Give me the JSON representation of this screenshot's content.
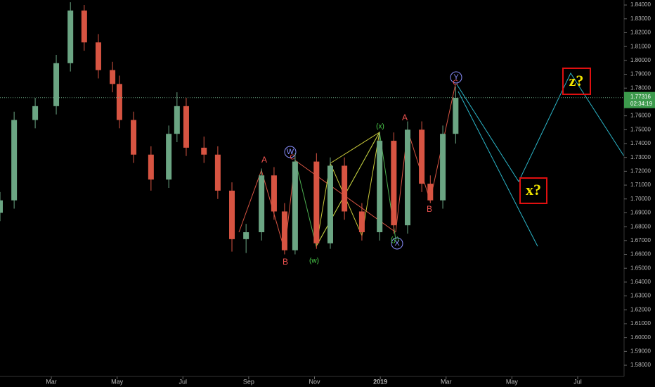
{
  "chart_data": {
    "type": "candlestick",
    "up_color": "#6ba583",
    "down_color": "#d75442",
    "x": [
      0.44,
      0.87,
      1.51,
      2.15,
      2.58,
      3.0,
      3.43,
      3.86,
      4.07,
      4.5,
      5.03,
      5.57,
      5.82,
      6.1,
      6.64,
      7.06,
      7.49,
      7.92,
      8.39,
      8.77,
      9.09,
      9.41,
      10.06,
      10.48,
      10.91,
      11.44,
      11.98,
      12.41,
      12.83,
      13.26,
      13.52,
      13.9,
      14.29
    ],
    "open": [
      1.69,
      1.699,
      1.757,
      1.767,
      1.798,
      1.836,
      1.813,
      1.793,
      1.783,
      1.757,
      1.732,
      1.714,
      1.747,
      1.767,
      1.737,
      1.732,
      1.706,
      1.671,
      1.676,
      1.717,
      1.691,
      1.663,
      1.727,
      1.668,
      1.724,
      1.691,
      1.676,
      1.742,
      1.681,
      1.75,
      1.711,
      1.699,
      1.747
    ],
    "high": [
      1.705,
      1.763,
      1.773,
      1.804,
      1.842,
      1.84,
      1.819,
      1.799,
      1.789,
      1.763,
      1.738,
      1.753,
      1.777,
      1.773,
      1.745,
      1.738,
      1.712,
      1.682,
      1.722,
      1.723,
      1.697,
      1.733,
      1.733,
      1.73,
      1.73,
      1.697,
      1.748,
      1.748,
      1.756,
      1.756,
      1.717,
      1.753,
      1.781
    ],
    "low": [
      1.684,
      1.693,
      1.751,
      1.761,
      1.792,
      1.807,
      1.787,
      1.777,
      1.751,
      1.726,
      1.706,
      1.708,
      1.741,
      1.731,
      1.726,
      1.7,
      1.662,
      1.661,
      1.67,
      1.685,
      1.66,
      1.66,
      1.664,
      1.664,
      1.685,
      1.67,
      1.67,
      1.675,
      1.675,
      1.705,
      1.697,
      1.693,
      1.74
    ],
    "close": [
      1.699,
      1.757,
      1.767,
      1.798,
      1.836,
      1.813,
      1.793,
      1.783,
      1.757,
      1.732,
      1.714,
      1.747,
      1.767,
      1.737,
      1.732,
      1.706,
      1.671,
      1.676,
      1.717,
      1.691,
      1.663,
      1.727,
      1.668,
      1.724,
      1.691,
      1.676,
      1.742,
      1.681,
      1.75,
      1.711,
      1.699,
      1.747,
      1.773
    ],
    "xlim": [
      0.44,
      19.41
    ],
    "xticks": [
      {
        "value": 2,
        "label": "Mar"
      },
      {
        "value": 4,
        "label": "May"
      },
      {
        "value": 6,
        "label": "Jul"
      },
      {
        "value": 8,
        "label": "Sep"
      },
      {
        "value": 10,
        "label": "Nov"
      },
      {
        "value": 12,
        "label": "2019"
      },
      {
        "value": 14,
        "label": "Mar"
      },
      {
        "value": 16,
        "label": "May"
      },
      {
        "value": 18,
        "label": "Jul"
      }
    ],
    "ylim": [
      1.5719,
      1.8436
    ],
    "yticks": [
      {
        "value": 1.58,
        "label": "1.58000"
      },
      {
        "value": 1.59,
        "label": "1.59000"
      },
      {
        "value": 1.6,
        "label": "1.60000"
      },
      {
        "value": 1.61,
        "label": "1.61000"
      },
      {
        "value": 1.62,
        "label": "1.62000"
      },
      {
        "value": 1.63,
        "label": "1.63000"
      },
      {
        "value": 1.64,
        "label": "1.64000"
      },
      {
        "value": 1.65,
        "label": "1.65000"
      },
      {
        "value": 1.66,
        "label": "1.66000"
      },
      {
        "value": 1.67,
        "label": "1.67000"
      },
      {
        "value": 1.68,
        "label": "1.68000"
      },
      {
        "value": 1.69,
        "label": "1.69000"
      },
      {
        "value": 1.7,
        "label": "1.70000"
      },
      {
        "value": 1.71,
        "label": "1.71000"
      },
      {
        "value": 1.72,
        "label": "1.72000"
      },
      {
        "value": 1.73,
        "label": "1.73000"
      },
      {
        "value": 1.74,
        "label": "1.74000"
      },
      {
        "value": 1.75,
        "label": "1.75000"
      },
      {
        "value": 1.76,
        "label": "1.76000"
      },
      {
        "value": 1.77,
        "label": "1.77000"
      },
      {
        "value": 1.78,
        "label": "1.78000"
      },
      {
        "value": 1.79,
        "label": "1.79000"
      },
      {
        "value": 1.8,
        "label": "1.80000"
      },
      {
        "value": 1.81,
        "label": "1.81000"
      },
      {
        "value": 1.82,
        "label": "1.82000"
      },
      {
        "value": 1.83,
        "label": "1.83000"
      },
      {
        "value": 1.84,
        "label": "1.84000"
      }
    ],
    "current_price": {
      "value": 1.77316,
      "label": "1.77316"
    },
    "countdown": "02:34:19",
    "annotations": [
      "A",
      "B",
      "C",
      "W",
      "(w)",
      "(x)",
      "(y)",
      "X",
      "A",
      "B",
      "C",
      "Y",
      "x?",
      "z?"
    ]
  }
}
